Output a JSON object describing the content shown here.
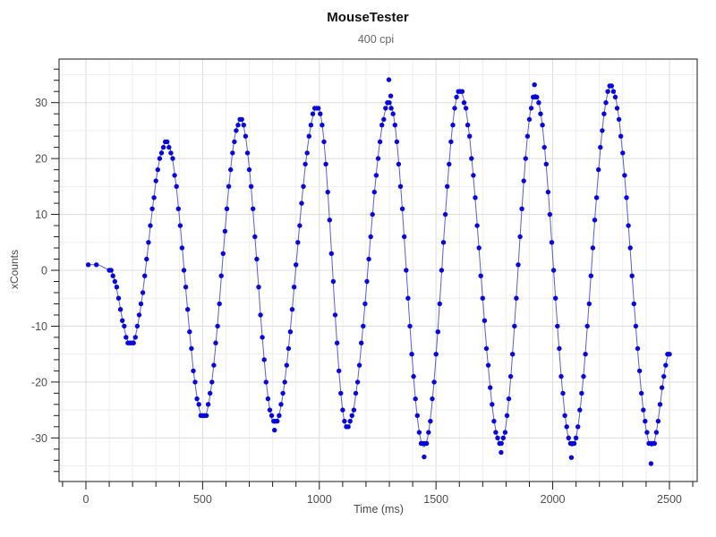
{
  "chart_data": {
    "type": "scatter",
    "title": "MouseTester",
    "subtitle": "400 cpi",
    "xlabel": "Time (ms)",
    "ylabel": "xCounts",
    "series_name": "xCounts",
    "marker": "filled-circle",
    "legend": false,
    "grid": true,
    "xlim": [
      -115,
      2619
    ],
    "ylim": [
      -37.8,
      37.8
    ],
    "x_major_ticks": [
      0,
      500,
      1000,
      1500,
      2000,
      2500
    ],
    "x_minor_step": 100,
    "y_major_ticks": [
      30,
      20,
      10,
      0,
      -10,
      -20,
      -30
    ],
    "y_minor_step": 2,
    "y_grid_step": 5,
    "sample_period_ms": 8,
    "lead_points": [
      [
        10,
        1
      ],
      [
        45,
        1
      ]
    ],
    "regular_samples_start_ms": 100,
    "regular_samples_end_ms": 2500,
    "wave_extrema": [
      [
        10,
        1
      ],
      [
        45,
        1
      ],
      [
        100,
        0.2
      ],
      [
        192,
        -13.2
      ],
      [
        345,
        23
      ],
      [
        504,
        -26.4
      ],
      [
        662,
        26.9
      ],
      [
        808,
        -27.4
      ],
      [
        993,
        29.3
      ],
      [
        1119,
        -28.2
      ],
      [
        1300,
        29.9
      ],
      [
        1448,
        -31.6
      ],
      [
        1602,
        32.1
      ],
      [
        1778,
        -31
      ],
      [
        1925,
        31.5
      ],
      [
        2083,
        -31.5
      ],
      [
        2250,
        32.9
      ],
      [
        2424,
        -31.5
      ],
      [
        2502,
        -14.8
      ]
    ],
    "outlier_points": [
      [
        808,
        -28.6
      ],
      [
        1298,
        34.1
      ],
      [
        1306,
        31.2
      ],
      [
        1449,
        -33.4
      ],
      [
        1779,
        -32.6
      ],
      [
        1922,
        33.2
      ],
      [
        2080,
        -33.5
      ],
      [
        2421,
        -34.6
      ]
    ],
    "points_encoding": "data points = smooth cosine interpolation through wave_extrema sampled every sample_period_ms with values rounded to integer counts, plus lead_points and outlier_points",
    "colors": {
      "marker": "#0707dd",
      "line": "#4a4ad4",
      "grid_minor": "#ededed",
      "grid_major": "#dcdcdc",
      "axis": "#1a1a1a",
      "tick_label": "#4d4d4d",
      "title": "#111111",
      "subtitle": "#666666",
      "background": "#ffffff"
    }
  }
}
